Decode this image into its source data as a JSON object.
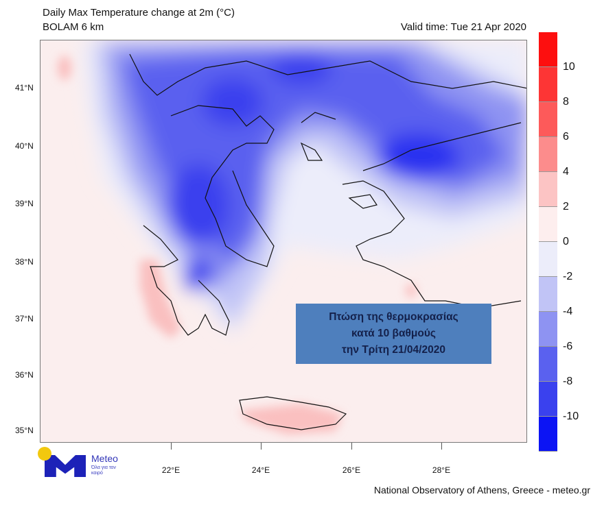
{
  "header": {
    "title": "Daily Max Temperature change at 2m (°C)",
    "model": "BOLAM 6 km",
    "valid_time": "Valid time: Tue 21 Apr 2020"
  },
  "map": {
    "lat_labels": [
      "41°N",
      "40°N",
      "39°N",
      "38°N",
      "37°N",
      "36°N",
      "35°N"
    ],
    "lon_labels": [
      "22°E",
      "24°E",
      "26°E",
      "28°E"
    ],
    "background_color": "#fbeeee"
  },
  "colorbar": {
    "labels": [
      "10",
      "8",
      "6",
      "4",
      "2",
      "0",
      "-2",
      "-4",
      "-6",
      "-8",
      "-10"
    ],
    "colors": [
      "#fd0f0f",
      "#fd3535",
      "#fd5a5a",
      "#fc8c8c",
      "#fcc4c4",
      "#fdeeee",
      "#ecedfa",
      "#c1c4f6",
      "#8e93f2",
      "#5a61ef",
      "#3a41ee",
      "#0c14f4"
    ]
  },
  "annotation": {
    "lines": [
      "Πτώση της θερμοκρασίας",
      "κατά 10 βαθμούς",
      "την Τρίτη  21/04/2020"
    ],
    "color": "#4e7fbd"
  },
  "logo": {
    "name": "Meteo",
    "tagline": "Όλα για τον καιρό"
  },
  "footer": {
    "credit": "National Observatory of Athens, Greece - meteo.gr"
  }
}
